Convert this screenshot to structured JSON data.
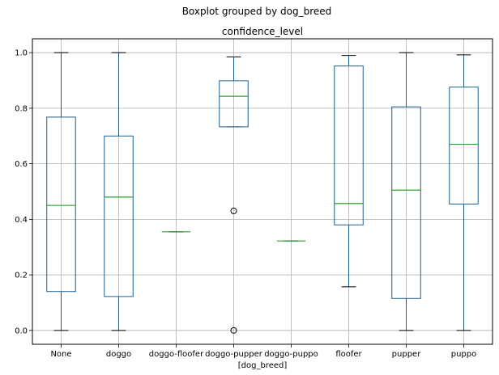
{
  "chart_data": {
    "type": "boxplot",
    "suptitle": "Boxplot grouped by dog_breed",
    "title": "confidence_level",
    "xlabel": "[dog_breed]",
    "ylabel": "",
    "ylim": [
      -0.05,
      1.05
    ],
    "yticks": [
      "0.0",
      "0.2",
      "0.4",
      "0.6",
      "0.8",
      "1.0"
    ],
    "grid": true,
    "colors": {
      "box": "#1f5f8b",
      "median": "#2ca02c",
      "grid": "#b0b0b0"
    },
    "groups": [
      {
        "category": "None",
        "whisker_low": 0.0,
        "q1": 0.14,
        "median": 0.45,
        "q3": 0.768,
        "whisker_high": 1.0,
        "outliers": []
      },
      {
        "category": "doggo",
        "whisker_low": 0.0,
        "q1": 0.122,
        "median": 0.48,
        "q3": 0.7,
        "whisker_high": 1.0,
        "outliers": []
      },
      {
        "category": "doggo-floofer",
        "whisker_low": 0.355,
        "q1": 0.355,
        "median": 0.355,
        "q3": 0.355,
        "whisker_high": 0.355,
        "outliers": []
      },
      {
        "category": "doggo-pupper",
        "whisker_low": 0.733,
        "q1": 0.733,
        "median": 0.843,
        "q3": 0.899,
        "whisker_high": 0.985,
        "outliers": [
          0.43,
          0.0
        ]
      },
      {
        "category": "doggo-puppo",
        "whisker_low": 0.322,
        "q1": 0.322,
        "median": 0.322,
        "q3": 0.322,
        "whisker_high": 0.322,
        "outliers": []
      },
      {
        "category": "floofer",
        "whisker_low": 0.157,
        "q1": 0.38,
        "median": 0.457,
        "q3": 0.952,
        "whisker_high": 0.99,
        "outliers": []
      },
      {
        "category": "pupper",
        "whisker_low": 0.0,
        "q1": 0.115,
        "median": 0.505,
        "q3": 0.805,
        "whisker_high": 1.0,
        "outliers": []
      },
      {
        "category": "puppo",
        "whisker_low": 0.0,
        "q1": 0.455,
        "median": 0.67,
        "q3": 0.876,
        "whisker_high": 0.992,
        "outliers": []
      }
    ]
  }
}
